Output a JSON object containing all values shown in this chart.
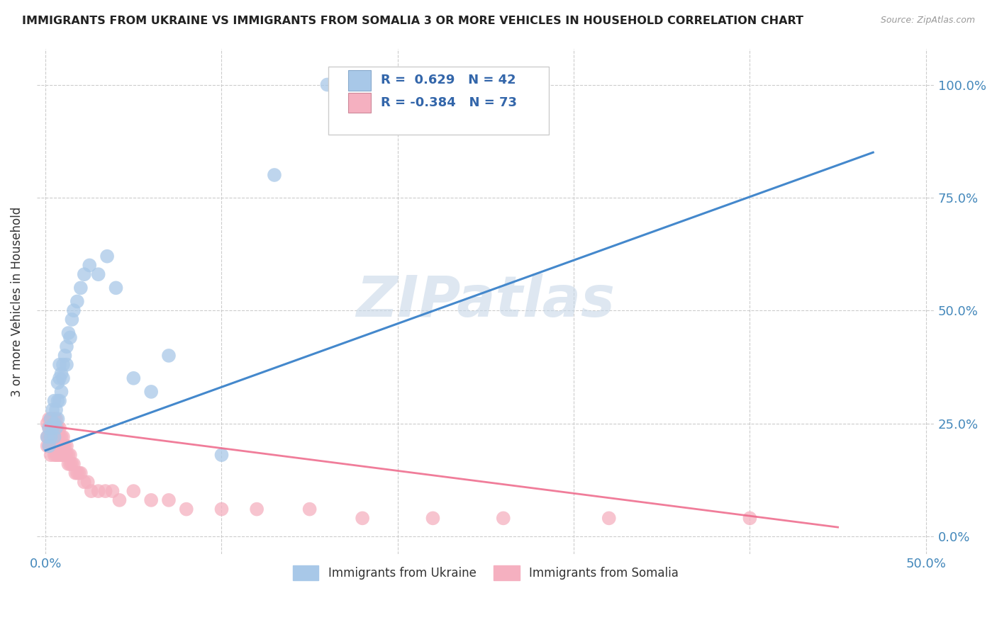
{
  "title": "IMMIGRANTS FROM UKRAINE VS IMMIGRANTS FROM SOMALIA 3 OR MORE VEHICLES IN HOUSEHOLD CORRELATION CHART",
  "source": "Source: ZipAtlas.com",
  "xlim": [
    -0.005,
    0.505
  ],
  "ylim": [
    -0.04,
    1.08
  ],
  "ukraine_R": 0.629,
  "ukraine_N": 42,
  "somalia_R": -0.384,
  "somalia_N": 73,
  "ukraine_color": "#a8c8e8",
  "somalia_color": "#f5b0c0",
  "ukraine_line_color": "#4488cc",
  "somalia_line_color": "#ee6688",
  "watermark": "ZIPatlas",
  "ukraine_scatter_x": [
    0.001,
    0.002,
    0.002,
    0.003,
    0.003,
    0.004,
    0.004,
    0.005,
    0.005,
    0.005,
    0.006,
    0.006,
    0.007,
    0.007,
    0.007,
    0.008,
    0.008,
    0.008,
    0.009,
    0.009,
    0.01,
    0.01,
    0.011,
    0.012,
    0.012,
    0.013,
    0.014,
    0.015,
    0.016,
    0.018,
    0.02,
    0.022,
    0.025,
    0.03,
    0.035,
    0.04,
    0.05,
    0.06,
    0.07,
    0.1,
    0.13,
    0.16
  ],
  "ukraine_scatter_y": [
    0.22,
    0.2,
    0.24,
    0.22,
    0.26,
    0.24,
    0.28,
    0.22,
    0.25,
    0.3,
    0.24,
    0.28,
    0.26,
    0.3,
    0.34,
    0.3,
    0.35,
    0.38,
    0.32,
    0.36,
    0.35,
    0.38,
    0.4,
    0.42,
    0.38,
    0.45,
    0.44,
    0.48,
    0.5,
    0.52,
    0.55,
    0.58,
    0.6,
    0.58,
    0.62,
    0.55,
    0.35,
    0.32,
    0.4,
    0.18,
    0.8,
    1.0
  ],
  "somalia_scatter_x": [
    0.001,
    0.001,
    0.001,
    0.002,
    0.002,
    0.002,
    0.002,
    0.003,
    0.003,
    0.003,
    0.003,
    0.003,
    0.004,
    0.004,
    0.004,
    0.004,
    0.005,
    0.005,
    0.005,
    0.005,
    0.005,
    0.006,
    0.006,
    0.006,
    0.006,
    0.006,
    0.007,
    0.007,
    0.007,
    0.007,
    0.008,
    0.008,
    0.008,
    0.008,
    0.009,
    0.009,
    0.009,
    0.01,
    0.01,
    0.01,
    0.011,
    0.011,
    0.012,
    0.012,
    0.013,
    0.013,
    0.014,
    0.014,
    0.015,
    0.016,
    0.017,
    0.018,
    0.019,
    0.02,
    0.022,
    0.024,
    0.026,
    0.03,
    0.034,
    0.038,
    0.042,
    0.05,
    0.06,
    0.07,
    0.08,
    0.1,
    0.12,
    0.15,
    0.18,
    0.22,
    0.26,
    0.32,
    0.4
  ],
  "somalia_scatter_y": [
    0.25,
    0.22,
    0.2,
    0.26,
    0.24,
    0.22,
    0.2,
    0.26,
    0.24,
    0.22,
    0.2,
    0.18,
    0.26,
    0.24,
    0.22,
    0.2,
    0.26,
    0.24,
    0.22,
    0.2,
    0.18,
    0.26,
    0.24,
    0.22,
    0.2,
    0.18,
    0.24,
    0.22,
    0.2,
    0.18,
    0.24,
    0.22,
    0.2,
    0.18,
    0.22,
    0.2,
    0.18,
    0.22,
    0.2,
    0.18,
    0.2,
    0.18,
    0.2,
    0.18,
    0.18,
    0.16,
    0.18,
    0.16,
    0.16,
    0.16,
    0.14,
    0.14,
    0.14,
    0.14,
    0.12,
    0.12,
    0.1,
    0.1,
    0.1,
    0.1,
    0.08,
    0.1,
    0.08,
    0.08,
    0.06,
    0.06,
    0.06,
    0.06,
    0.04,
    0.04,
    0.04,
    0.04,
    0.04
  ],
  "ukraine_line_x0": 0.0,
  "ukraine_line_y0": 0.19,
  "ukraine_line_x1": 0.47,
  "ukraine_line_y1": 0.85,
  "somalia_line_x0": 0.0,
  "somalia_line_y0": 0.245,
  "somalia_line_x1": 0.45,
  "somalia_line_y1": 0.02
}
